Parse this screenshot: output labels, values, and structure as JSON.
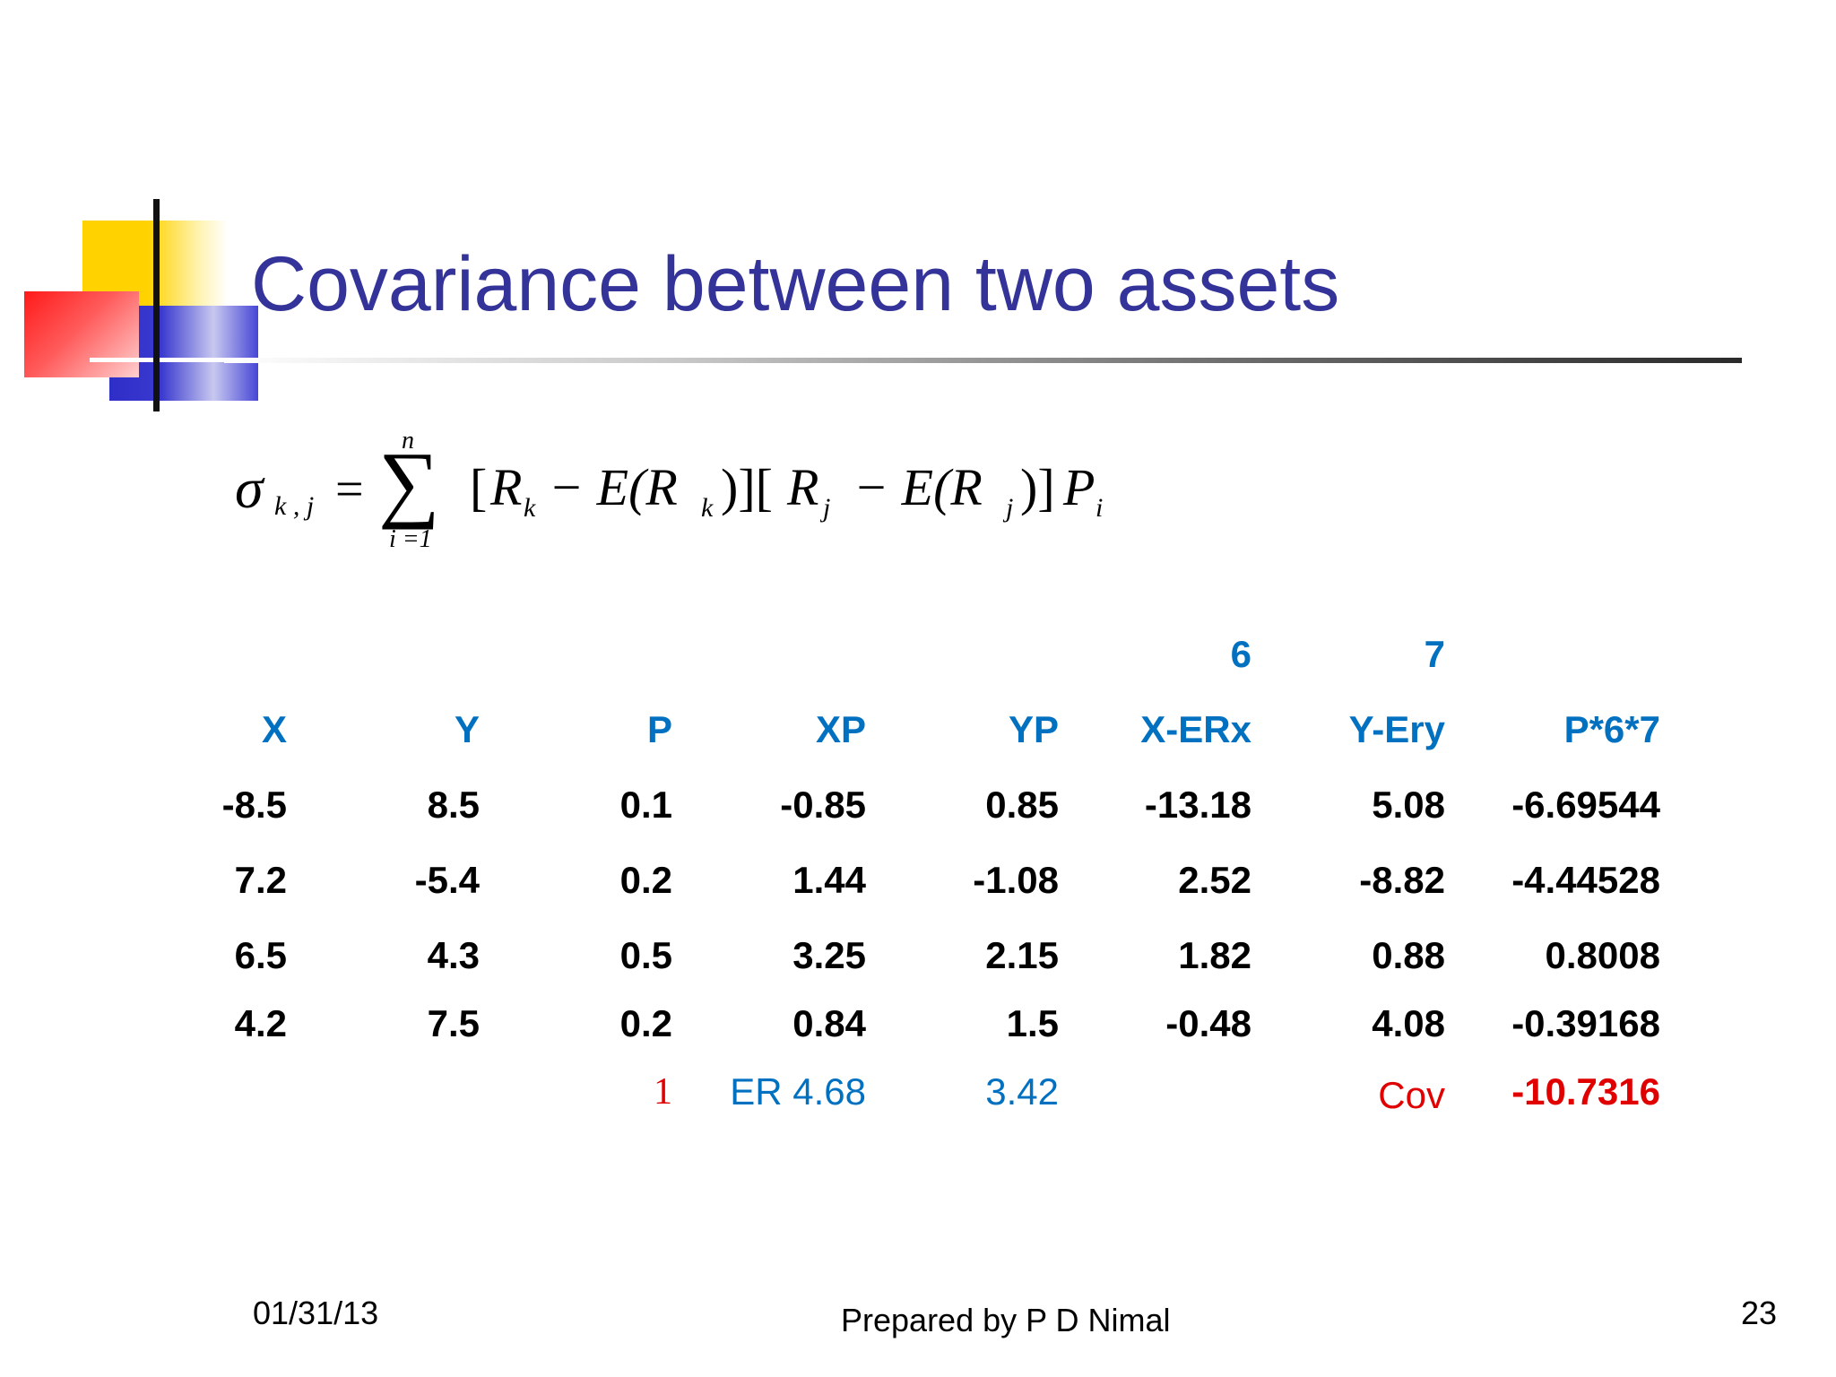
{
  "slide": {
    "title": "Covariance between two assets",
    "formula": {
      "sigma": "σ",
      "sigma_sub": "k , j",
      "equals": "=",
      "sum": "∑",
      "upper": "n",
      "lower": "i =1",
      "term1_open": "[",
      "R_k": "R",
      "k1": "k",
      "minus1": "− E(R",
      "k2": "k",
      "close1": ")][",
      "R_j": "R",
      "j1": "j",
      "minus2": "− E(R",
      "j2": "j",
      "close2": ")]",
      "P": "P",
      "i": "i"
    }
  },
  "table": {
    "index_row": [
      "6",
      "7"
    ],
    "headers": [
      "X",
      "Y",
      "P",
      "XP",
      "YP",
      "X-ERx",
      "Y-Ery",
      "P*6*7"
    ],
    "rows": [
      [
        "-8.5",
        "8.5",
        "0.1",
        "-0.85",
        "0.85",
        "-13.18",
        "5.08",
        "-6.69544"
      ],
      [
        "7.2",
        "-5.4",
        "0.2",
        "1.44",
        "-1.08",
        "2.52",
        "-8.82",
        "-4.44528"
      ],
      [
        "6.5",
        "4.3",
        "0.5",
        "3.25",
        "2.15",
        "1.82",
        "0.88",
        "0.8008"
      ],
      [
        "4.2",
        "7.5",
        "0.2",
        "0.84",
        "1.5",
        "-0.48",
        "4.08",
        "-0.39168"
      ]
    ],
    "summary": {
      "p_total": "1",
      "er_x": "ER 4.68",
      "er_y": "3.42",
      "cov_label": "Cov",
      "cov_value": "-10.7316"
    }
  },
  "footer": {
    "date": "01/31/13",
    "author": "Prepared by P D Nimal",
    "page": "23"
  }
}
